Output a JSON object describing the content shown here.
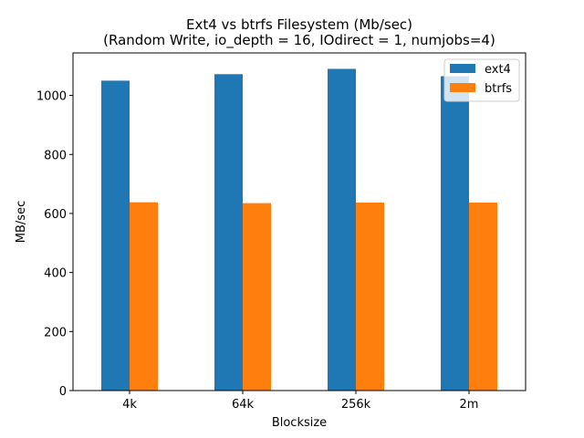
{
  "chart_data": {
    "type": "bar",
    "title": "Ext4 vs btrfs Filesystem (Mb/sec)",
    "subtitle": "(Random Write, io_depth = 16, IOdirect = 1, numjobs=4)",
    "xlabel": "Blocksize",
    "ylabel": "MB/sec",
    "categories": [
      "4k",
      "64k",
      "256k",
      "2m"
    ],
    "series": [
      {
        "name": "ext4",
        "color": "#1f77b4",
        "values": [
          1050,
          1072,
          1090,
          1065
        ]
      },
      {
        "name": "btrfs",
        "color": "#ff7f0e",
        "values": [
          638,
          635,
          637,
          637
        ]
      }
    ],
    "ylim": [
      0,
      1144
    ],
    "yticks": [
      0,
      200,
      400,
      600,
      800,
      1000
    ],
    "grid": false,
    "legend": "top-right"
  }
}
